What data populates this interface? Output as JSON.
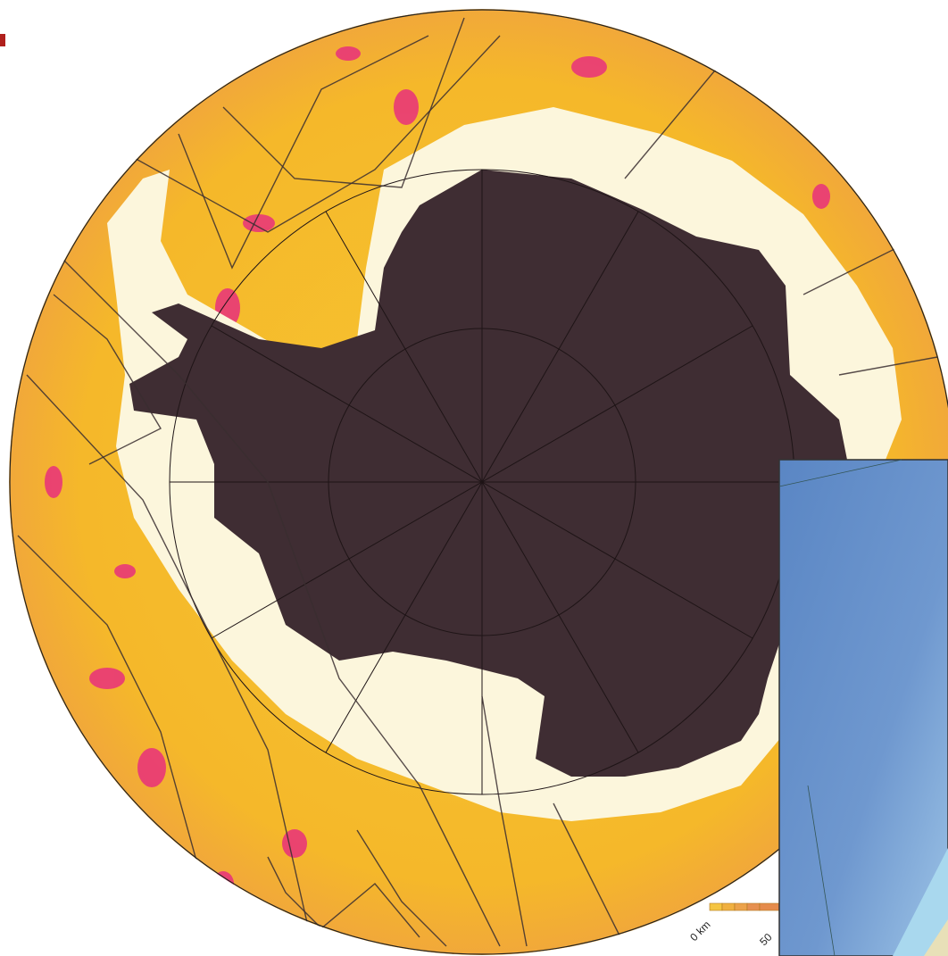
{
  "scale_bar": {
    "labels": [
      "0 km",
      "50"
    ]
  }
}
